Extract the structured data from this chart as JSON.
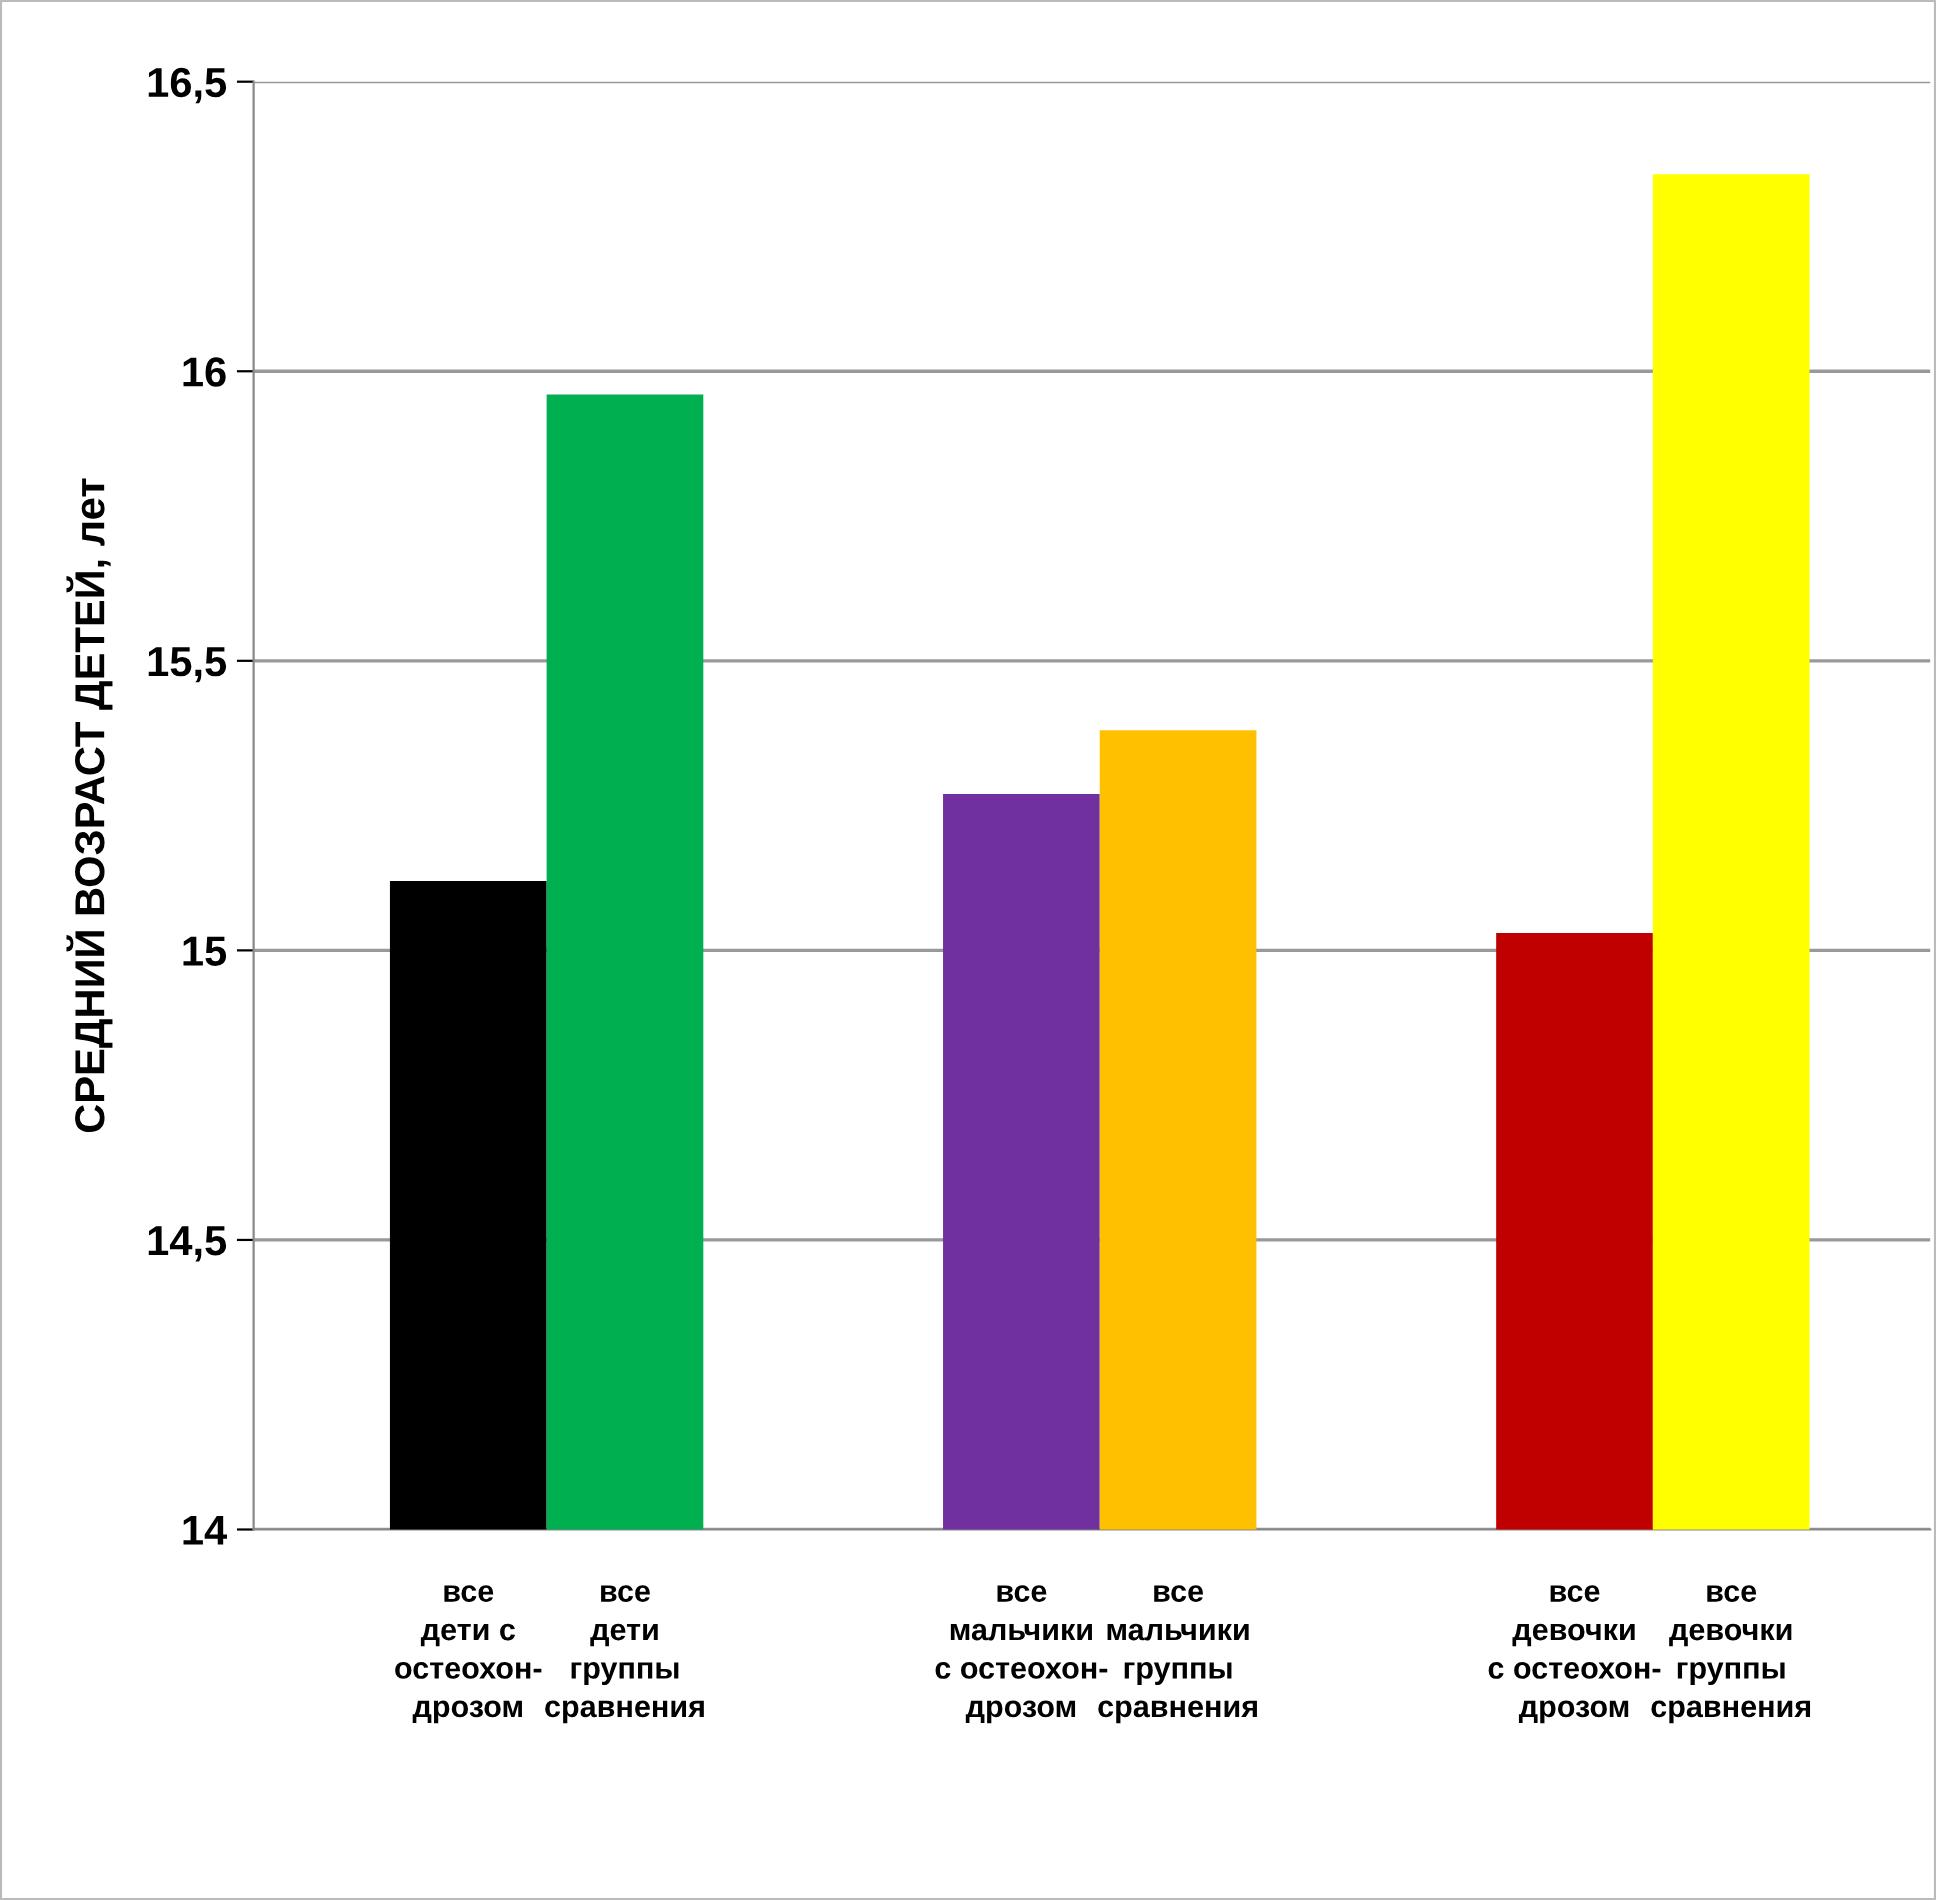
{
  "chart_data": {
    "type": "bar",
    "ylabel": "СРЕДНИЙ ВОЗРАСТ ДЕТЕЙ, лет",
    "categories": [
      "все\nдети с\nостеохон-\nдрозом",
      "все\nдети\nгруппы\nсравнения",
      "все\nмальчики\nс остеохон-\nдрозом",
      "все\nмальчики\nгруппы\nсравнения",
      "все\nдевочки\nс остеохон-\nдрозом",
      "все\nдевочки\nгруппы\nсравнения"
    ],
    "values": [
      15.12,
      15.96,
      15.27,
      15.38,
      15.03,
      16.34
    ],
    "colors": [
      "#000000",
      "#00b050",
      "#7030a0",
      "#ffc000",
      "#c00000",
      "#ffff00"
    ],
    "ylim": [
      14,
      16.5
    ],
    "yticks": [
      14,
      {
        "value": 14.5,
        "label": "14,5"
      },
      15,
      {
        "value": 15.5,
        "label": "15,5"
      },
      16,
      {
        "value": 16.5,
        "label": "16,5"
      }
    ],
    "grid": "y"
  }
}
